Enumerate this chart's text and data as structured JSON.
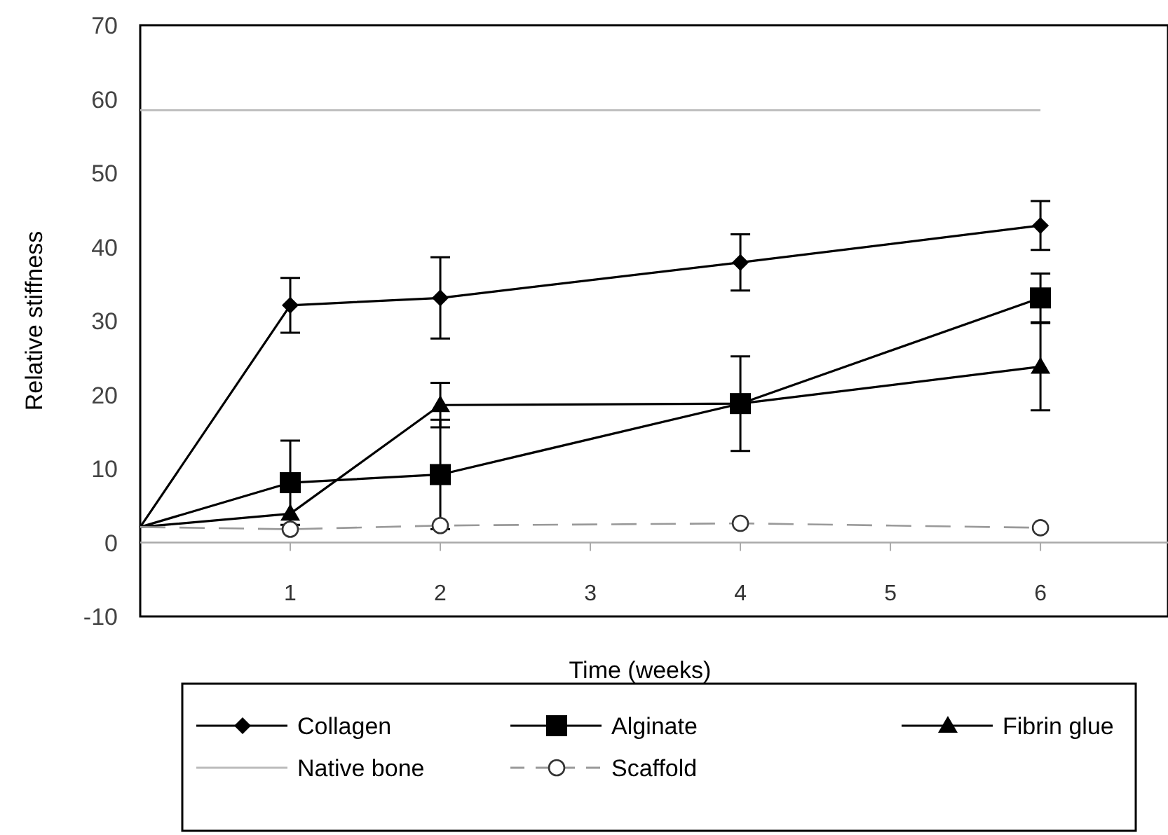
{
  "chart_data": {
    "type": "line",
    "xlabel": "Time (weeks)",
    "ylabel": "Relative stiffness",
    "xlim": [
      0,
      6.85
    ],
    "xticks": [
      1,
      2,
      3,
      4,
      5,
      6
    ],
    "ylim": [
      -10,
      70
    ],
    "yticks": [
      -10,
      0,
      10,
      20,
      30,
      40,
      50,
      60,
      70
    ],
    "legend": "bottom",
    "series": [
      {
        "name": "Collagen",
        "color": "#000000",
        "marker": "diamond",
        "line_style": "solid",
        "x": [
          0,
          1,
          2,
          4,
          6
        ],
        "values": [
          2.1,
          32.1,
          33.1,
          37.9,
          42.9
        ],
        "errors": [
          null,
          3.7,
          5.5,
          3.8,
          3.3
        ]
      },
      {
        "name": "Alginate",
        "color": "#000000",
        "marker": "square",
        "line_style": "solid",
        "x": [
          0,
          1,
          2,
          4,
          6
        ],
        "values": [
          2.1,
          8.1,
          9.2,
          18.8,
          33.1
        ],
        "errors": [
          null,
          5.7,
          7.4,
          6.4,
          3.3
        ]
      },
      {
        "name": "Fibrin glue",
        "color": "#000000",
        "marker": "triangle",
        "line_style": "solid",
        "x": [
          0,
          1,
          2,
          4,
          6
        ],
        "values": [
          2.1,
          3.9,
          18.6,
          18.8,
          23.8
        ],
        "errors": [
          null,
          null,
          3,
          null,
          5.9
        ]
      },
      {
        "name": "Native bone",
        "color": "#bbbbbb",
        "marker": "none",
        "line_style": "solid",
        "x": [
          0,
          6
        ],
        "values": [
          58.5,
          58.5
        ]
      },
      {
        "name": "Scaffold",
        "color": "#999999",
        "marker": "circle",
        "line_style": "dashed",
        "x": [
          0,
          1,
          2,
          4,
          6
        ],
        "values": [
          2.1,
          1.8,
          2.3,
          2.6,
          2.0
        ]
      }
    ]
  }
}
